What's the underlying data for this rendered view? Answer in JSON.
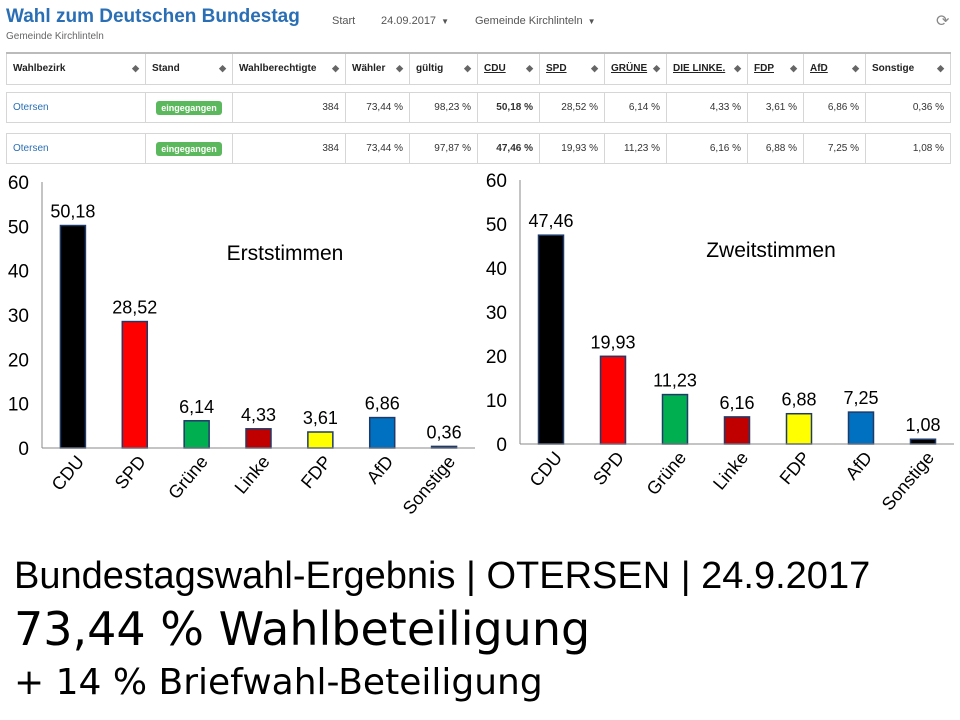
{
  "header": {
    "title": "Wahl zum Deutschen Bundestag",
    "subtitle": "Gemeinde Kirchlinteln",
    "nav_start": "Start",
    "nav_date": "24.09.2017",
    "nav_gemeinde": "Gemeinde Kirchlinteln"
  },
  "table": {
    "columns": [
      "Wahlbezirk",
      "Stand",
      "Wahlberechtigte",
      "Wähler",
      "gültig",
      "CDU",
      "SPD",
      "GRÜNE",
      "DIE LINKE.",
      "FDP",
      "AfD",
      "Sonstige"
    ],
    "rows": [
      [
        "Otersen",
        "eingegangen",
        "384",
        "73,44 %",
        "98,23 %",
        "50,18 %",
        "28,52 %",
        "6,14 %",
        "4,33 %",
        "3,61 %",
        "6,86 %",
        "0,36 %"
      ],
      [
        "Otersen",
        "eingegangen",
        "384",
        "73,44 %",
        "97,87 %",
        "47,46 %",
        "19,93 %",
        "11,23 %",
        "6,16 %",
        "6,88 %",
        "7,25 %",
        "1,08 %"
      ]
    ]
  },
  "chart_data": [
    {
      "type": "bar",
      "title": "Erststimmen",
      "categories": [
        "CDU",
        "SPD",
        "Grüne",
        "Linke",
        "FDP",
        "AfD",
        "Sonstige"
      ],
      "values": [
        50.18,
        28.52,
        6.14,
        4.33,
        3.61,
        6.86,
        0.36
      ],
      "value_labels": [
        "50,18",
        "28,52",
        "6,14",
        "4,33",
        "3,61",
        "6,86",
        "0,36"
      ],
      "colors": [
        "#000000",
        "#ff0000",
        "#00b050",
        "#c00000",
        "#ffff00",
        "#0070c0",
        "#000000"
      ],
      "ylim": [
        0,
        60
      ],
      "yticks": [
        0,
        10,
        20,
        30,
        40,
        50,
        60
      ],
      "grid": false
    },
    {
      "type": "bar",
      "title": "Zweitstimmen",
      "categories": [
        "CDU",
        "SPD",
        "Grüne",
        "Linke",
        "FDP",
        "AfD",
        "Sonstige"
      ],
      "values": [
        47.46,
        19.93,
        11.23,
        6.16,
        6.88,
        7.25,
        1.08
      ],
      "value_labels": [
        "47,46",
        "19,93",
        "11,23",
        "6,16",
        "6,88",
        "7,25",
        "1,08"
      ],
      "colors": [
        "#000000",
        "#ff0000",
        "#00b050",
        "#c00000",
        "#ffff00",
        "#0070c0",
        "#000000"
      ],
      "ylim": [
        0,
        60
      ],
      "yticks": [
        0,
        10,
        20,
        30,
        40,
        50,
        60
      ],
      "grid": false
    }
  ],
  "footer": {
    "line1": "Bundestagswahl-Ergebnis | OTERSEN | 24.9.2017",
    "line2": "73,44 % Wahlbeteiligung",
    "line3": "+ 14 % Briefwahl-Beteiligung"
  }
}
